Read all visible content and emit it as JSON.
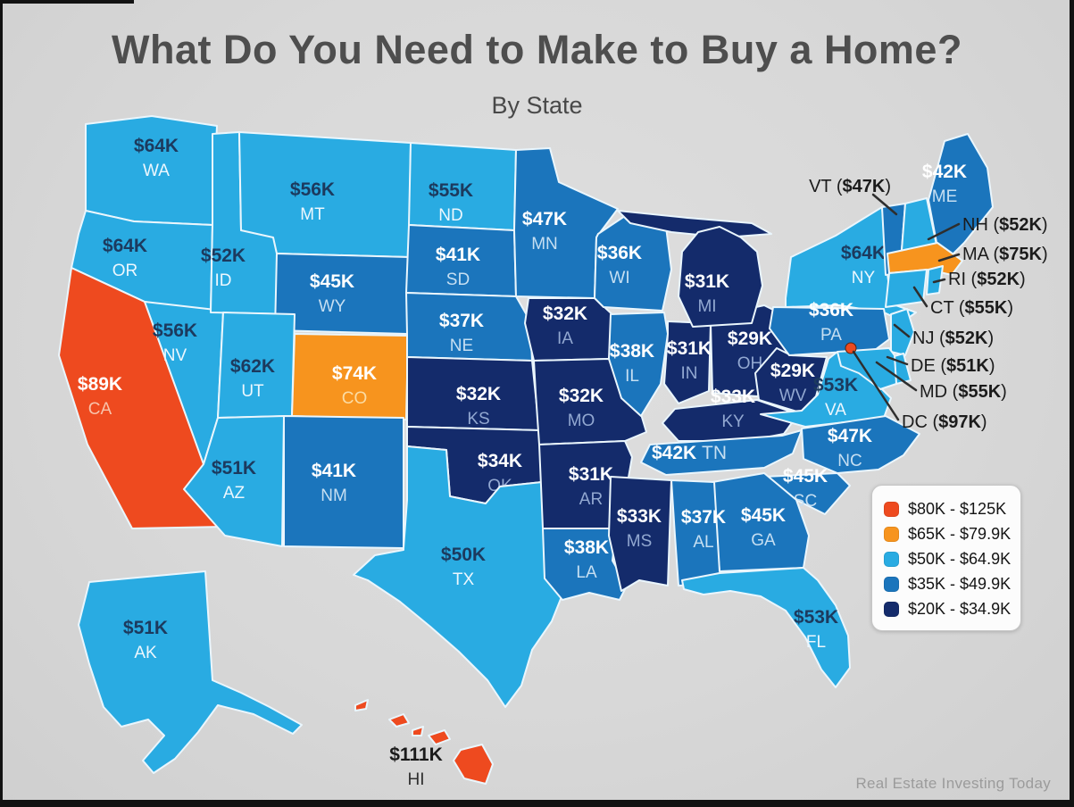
{
  "page": {
    "title": "What Do You Need to Make to Buy a Home?",
    "subtitle": "By State",
    "credit": "Real Estate Investing Today"
  },
  "chart_data": {
    "type": "choropleth",
    "region": "United States by state",
    "metric": "Salary needed to buy a home",
    "legend_position": "right",
    "legend": [
      {
        "label": "$80K - $125K",
        "color": "#EE4A1F"
      },
      {
        "label": "$65K - $79.9K",
        "color": "#F7941E"
      },
      {
        "label": "$50K - $64.9K",
        "color": "#29ABE2"
      },
      {
        "label": "$35K - $49.9K",
        "color": "#1B75BC"
      },
      {
        "label": "$20K - $34.9K",
        "color": "#142B6B"
      }
    ],
    "states": [
      {
        "abbr": "WA",
        "value": "$64K",
        "bucket": 2
      },
      {
        "abbr": "OR",
        "value": "$64K",
        "bucket": 2
      },
      {
        "abbr": "CA",
        "value": "$89K",
        "bucket": 0
      },
      {
        "abbr": "NV",
        "value": "$56K",
        "bucket": 2
      },
      {
        "abbr": "ID",
        "value": "$52K",
        "bucket": 2
      },
      {
        "abbr": "MT",
        "value": "$56K",
        "bucket": 2
      },
      {
        "abbr": "WY",
        "value": "$45K",
        "bucket": 3
      },
      {
        "abbr": "UT",
        "value": "$62K",
        "bucket": 2
      },
      {
        "abbr": "CO",
        "value": "$74K",
        "bucket": 1
      },
      {
        "abbr": "AZ",
        "value": "$51K",
        "bucket": 2
      },
      {
        "abbr": "NM",
        "value": "$41K",
        "bucket": 3
      },
      {
        "abbr": "ND",
        "value": "$55K",
        "bucket": 2
      },
      {
        "abbr": "SD",
        "value": "$41K",
        "bucket": 3
      },
      {
        "abbr": "NE",
        "value": "$37K",
        "bucket": 3
      },
      {
        "abbr": "KS",
        "value": "$32K",
        "bucket": 4
      },
      {
        "abbr": "OK",
        "value": "$34K",
        "bucket": 4
      },
      {
        "abbr": "TX",
        "value": "$50K",
        "bucket": 2
      },
      {
        "abbr": "MN",
        "value": "$47K",
        "bucket": 3
      },
      {
        "abbr": "IA",
        "value": "$32K",
        "bucket": 4
      },
      {
        "abbr": "MO",
        "value": "$32K",
        "bucket": 4
      },
      {
        "abbr": "AR",
        "value": "$31K",
        "bucket": 4
      },
      {
        "abbr": "LA",
        "value": "$38K",
        "bucket": 3
      },
      {
        "abbr": "WI",
        "value": "$36K",
        "bucket": 3
      },
      {
        "abbr": "IL",
        "value": "$38K",
        "bucket": 3
      },
      {
        "abbr": "IN",
        "value": "$31K",
        "bucket": 4
      },
      {
        "abbr": "OH",
        "value": "$29K",
        "bucket": 4
      },
      {
        "abbr": "MI",
        "value": "$31K",
        "bucket": 4
      },
      {
        "abbr": "KY",
        "value": "$33K",
        "bucket": 4
      },
      {
        "abbr": "TN",
        "value": "$42K",
        "bucket": 3
      },
      {
        "abbr": "WV",
        "value": "$29K",
        "bucket": 4
      },
      {
        "abbr": "VA",
        "value": "$53K",
        "bucket": 2
      },
      {
        "abbr": "NC",
        "value": "$47K",
        "bucket": 3
      },
      {
        "abbr": "SC",
        "value": "$45K",
        "bucket": 3
      },
      {
        "abbr": "GA",
        "value": "$45K",
        "bucket": 3
      },
      {
        "abbr": "AL",
        "value": "$37K",
        "bucket": 3
      },
      {
        "abbr": "MS",
        "value": "$33K",
        "bucket": 4
      },
      {
        "abbr": "FL",
        "value": "$53K",
        "bucket": 2
      },
      {
        "abbr": "NY",
        "value": "$64K",
        "bucket": 2
      },
      {
        "abbr": "PA",
        "value": "$36K",
        "bucket": 3
      },
      {
        "abbr": "ME",
        "value": "$42K",
        "bucket": 3
      },
      {
        "abbr": "VT",
        "value": "$47K",
        "bucket": 3
      },
      {
        "abbr": "NH",
        "value": "$52K",
        "bucket": 2
      },
      {
        "abbr": "MA",
        "value": "$75K",
        "bucket": 1
      },
      {
        "abbr": "CT",
        "value": "$55K",
        "bucket": 2
      },
      {
        "abbr": "RI",
        "value": "$52K",
        "bucket": 2
      },
      {
        "abbr": "NJ",
        "value": "$52K",
        "bucket": 2
      },
      {
        "abbr": "DE",
        "value": "$51K",
        "bucket": 2
      },
      {
        "abbr": "MD",
        "value": "$55K",
        "bucket": 2
      },
      {
        "abbr": "AK",
        "value": "$51K",
        "bucket": 2
      },
      {
        "abbr": "HI",
        "value": "$111K",
        "bucket": 0
      },
      {
        "abbr": "DC",
        "value": "$97K",
        "bucket": 0
      }
    ],
    "callouts": [
      {
        "abbr": "VT",
        "value": "$47K"
      },
      {
        "abbr": "NH",
        "value": "$52K"
      },
      {
        "abbr": "MA",
        "value": "$75K"
      },
      {
        "abbr": "RI",
        "value": "$52K"
      },
      {
        "abbr": "CT",
        "value": "$55K"
      },
      {
        "abbr": "NJ",
        "value": "$52K"
      },
      {
        "abbr": "DE",
        "value": "$51K"
      },
      {
        "abbr": "MD",
        "value": "$55K"
      },
      {
        "abbr": "DC",
        "value": "$97K"
      }
    ]
  }
}
